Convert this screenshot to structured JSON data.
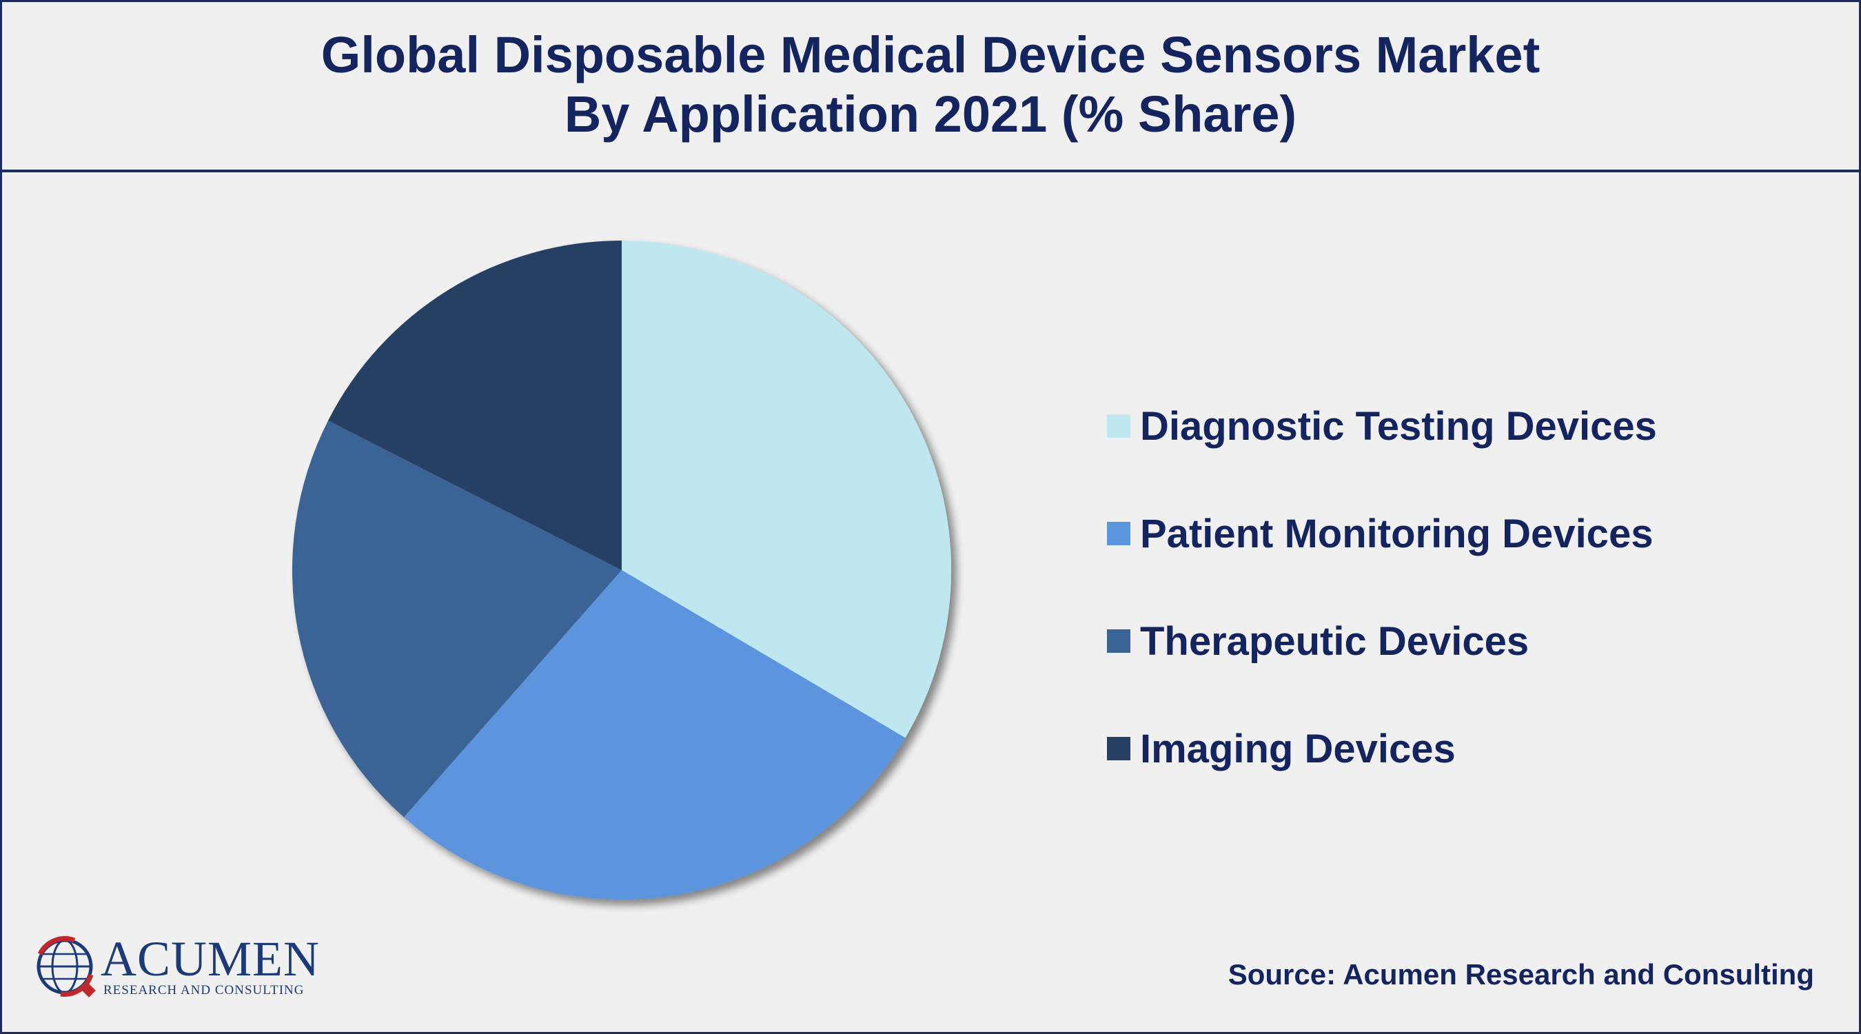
{
  "header": {
    "title_line1": "Global Disposable Medical Device Sensors Market",
    "title_line2": "By Application 2021 (% Share)"
  },
  "colors": {
    "frame": "#1c2d5a",
    "text": "#13245f",
    "background": "#f0f0f0",
    "logo_red": "#c0282d"
  },
  "chart_data": {
    "type": "pie",
    "title": "Global Disposable Medical Device Sensors Market By Application 2021 (% Share)",
    "legend_position": "right",
    "start": "top, clockwise",
    "slices": [
      {
        "label": "Diagnostic Testing Devices",
        "value": 33.5,
        "color": "#bfe7f0"
      },
      {
        "label": "Patient Monitoring Devices",
        "value": 28.0,
        "color": "#5b95dd"
      },
      {
        "label": "Therapeutic Devices",
        "value": 21.0,
        "color": "#3a6396"
      },
      {
        "label": "Imaging Devices",
        "value": 17.5,
        "color": "#273f63"
      }
    ]
  },
  "legend": {
    "items": [
      {
        "label": "Diagnostic Testing Devices",
        "color": "#bfe7f0"
      },
      {
        "label": "Patient Monitoring Devices",
        "color": "#5b95dd"
      },
      {
        "label": "Therapeutic Devices",
        "color": "#3a6396"
      },
      {
        "label": "Imaging Devices",
        "color": "#273f63"
      }
    ]
  },
  "logo": {
    "name": "ACUMEN",
    "tagline": "RESEARCH AND CONSULTING",
    "icon": "globe-icon"
  },
  "footer": {
    "source": "Source: Acumen Research and Consulting"
  }
}
